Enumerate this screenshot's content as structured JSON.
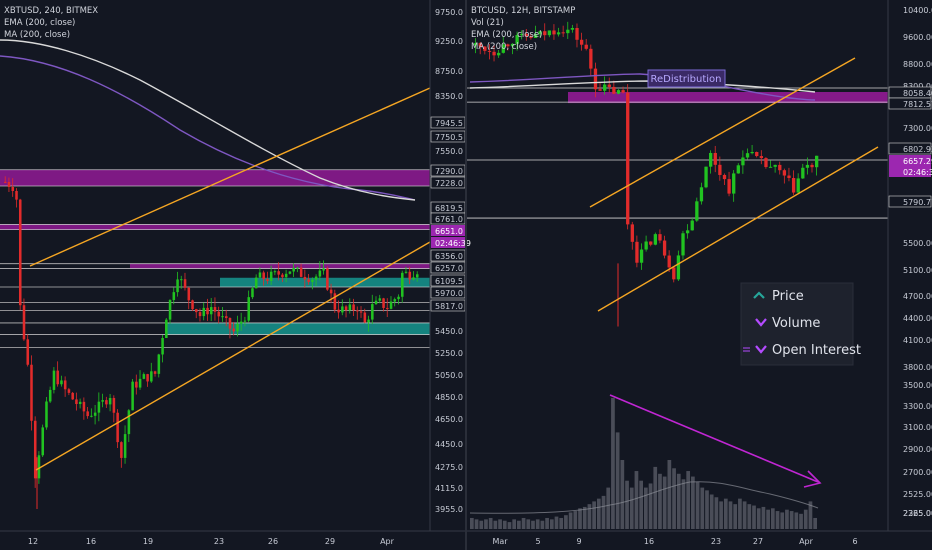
{
  "chart_data": [
    {
      "type": "candlestick",
      "title": "XBTUSD, 240, BITMEX",
      "indicators": [
        "EMA (200, close)",
        "MA (200, close)"
      ],
      "ylim": [
        3850,
        9900
      ],
      "y_ticks": [
        "9750.0",
        "9250.0",
        "8750.0",
        "8350.0",
        "7945.5",
        "7750.5",
        "7550.0",
        "7290.0",
        "7228.0",
        "6819.5",
        "6761.0",
        "6651.0",
        "02:46:39",
        "6356.0",
        "6257.0",
        "6109.5",
        "5970.0",
        "5817.0",
        "5450.0",
        "5250.0",
        "5050.0",
        "4850.0",
        "4650.0",
        "4450.0",
        "4275.0",
        "4115.0",
        "3955.0"
      ],
      "x_ticks": [
        "12",
        "16",
        "19",
        "23",
        "26",
        "29",
        "Apr"
      ],
      "current_price": "6651.0",
      "countdown": "02:46:39",
      "close_path": [
        [
          0,
          7800
        ],
        [
          2,
          7750
        ],
        [
          3,
          7600
        ],
        [
          4,
          6300
        ],
        [
          6,
          5600
        ],
        [
          7,
          5000
        ],
        [
          8,
          4300
        ],
        [
          11,
          5100
        ],
        [
          13,
          5500
        ],
        [
          16,
          5300
        ],
        [
          19,
          5150
        ],
        [
          22,
          5000
        ],
        [
          25,
          5100
        ],
        [
          28,
          5250
        ],
        [
          31,
          4500
        ],
        [
          34,
          5350
        ],
        [
          37,
          5450
        ],
        [
          40,
          5500
        ],
        [
          43,
          6200
        ],
        [
          46,
          6700
        ],
        [
          49,
          6400
        ],
        [
          52,
          6200
        ],
        [
          55,
          6300
        ],
        [
          58,
          6150
        ],
        [
          61,
          6000
        ],
        [
          64,
          6200
        ],
        [
          67,
          6650
        ],
        [
          70,
          6650
        ],
        [
          73,
          6700
        ],
        [
          76,
          6750
        ],
        [
          79,
          6700
        ],
        [
          82,
          6650
        ],
        [
          85,
          6700
        ],
        [
          88,
          6300
        ],
        [
          91,
          6250
        ],
        [
          94,
          6300
        ],
        [
          96,
          6100
        ],
        [
          98,
          6300
        ],
        [
          100,
          6350
        ],
        [
          102,
          6300
        ],
        [
          105,
          6450
        ],
        [
          106,
          6700
        ],
        [
          108,
          6700
        ],
        [
          110,
          6750
        ]
      ]
    },
    {
      "type": "candlestick",
      "title": "BTCUSD, 12H, BITSTAMP",
      "indicators": [
        "Vol (21)",
        "EMA (200, close)",
        "MA (200, close)"
      ],
      "ylim": [
        2150,
        10500
      ],
      "y_ticks": [
        "10400.00",
        "9600.00",
        "8800.00",
        "8300.00",
        "8058.40",
        "7812.57",
        "7300.00",
        "6802.93",
        "6657.29",
        "02:46:39",
        "5790.71",
        "5500.00",
        "5100.00",
        "4700.00",
        "4400.00",
        "4100.00",
        "3800.00",
        "3500.00",
        "3300.00",
        "3100.00",
        "2900.00",
        "2700.00",
        "2525.00",
        "2365.00",
        "2225.00"
      ],
      "x_ticks": [
        "Mar",
        "5",
        "9",
        "16",
        "23",
        "27",
        "Apr",
        "6"
      ],
      "current_price": "6657.29",
      "countdown": "02:46:39",
      "annotation": "ReDistribution",
      "close_path": [
        [
          0,
          8800
        ],
        [
          4,
          8700
        ],
        [
          8,
          8900
        ],
        [
          12,
          8950
        ],
        [
          15,
          9000
        ],
        [
          18,
          9100
        ],
        [
          21,
          9050
        ],
        [
          24,
          8700
        ],
        [
          26,
          8100
        ],
        [
          28,
          8050
        ],
        [
          30,
          8000
        ],
        [
          32,
          7950
        ],
        [
          33,
          5700
        ],
        [
          35,
          5100
        ],
        [
          37,
          5300
        ],
        [
          39,
          5500
        ],
        [
          41,
          5200
        ],
        [
          43,
          4800
        ],
        [
          45,
          5500
        ],
        [
          47,
          5800
        ],
        [
          49,
          6400
        ],
        [
          51,
          6900
        ],
        [
          53,
          6600
        ],
        [
          55,
          6300
        ],
        [
          57,
          6700
        ],
        [
          59,
          7000
        ],
        [
          61,
          6800
        ],
        [
          63,
          6700
        ],
        [
          65,
          6650
        ],
        [
          67,
          6500
        ],
        [
          69,
          6300
        ],
        [
          71,
          6650
        ],
        [
          73,
          6700
        ],
        [
          74,
          6800
        ]
      ],
      "volume_relative": [
        0.08,
        0.07,
        0.06,
        0.07,
        0.08,
        0.06,
        0.07,
        0.06,
        0.05,
        0.07,
        0.06,
        0.08,
        0.07,
        0.06,
        0.07,
        0.06,
        0.08,
        0.07,
        0.09,
        0.08,
        0.1,
        0.12,
        0.13,
        0.15,
        0.16,
        0.18,
        0.2,
        0.22,
        0.24,
        0.3,
        0.95,
        0.7,
        0.5,
        0.35,
        0.3,
        0.42,
        0.35,
        0.3,
        0.33,
        0.45,
        0.4,
        0.38,
        0.5,
        0.44,
        0.4,
        0.36,
        0.42,
        0.38,
        0.34,
        0.3,
        0.28,
        0.25,
        0.23,
        0.2,
        0.22,
        0.2,
        0.18,
        0.22,
        0.2,
        0.18,
        0.17,
        0.15,
        0.16,
        0.14,
        0.15,
        0.13,
        0.12,
        0.14,
        0.13,
        0.12,
        0.11,
        0.14,
        0.2,
        0.08
      ]
    }
  ],
  "legend": {
    "items": [
      "Price",
      "Volume",
      "Open Interest"
    ],
    "up_color": "#26a69a",
    "down_color": "#b44bff"
  },
  "colors": {
    "bg": "#131722",
    "bull": "#21c321",
    "bear": "#e22b2b",
    "purple_zone": "#8b1a8f",
    "teal_zone": "#168f8a",
    "orange": "#f5a623",
    "ema": "#7e57c2",
    "ma": "#d9d9d9",
    "arrow": "#c026d3"
  }
}
